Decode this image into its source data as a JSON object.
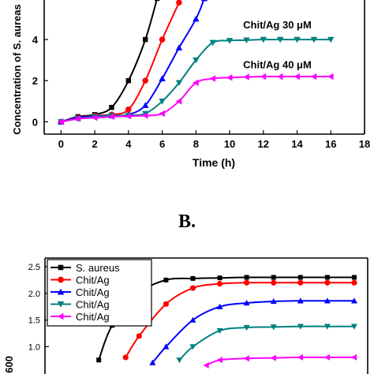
{
  "panel_b_label": "B.",
  "chart_data": [
    {
      "type": "line",
      "xlabel": "Time (h)",
      "ylabel": "Concentration of S. aureas",
      "xlim": [
        -1,
        18
      ],
      "ylim": [
        -0.6,
        6
      ],
      "xticks": [
        0,
        2,
        4,
        6,
        8,
        10,
        12,
        14,
        16,
        18
      ],
      "yticks": [
        0,
        2,
        4
      ],
      "series": [
        {
          "name": "",
          "color": "#000000",
          "marker": "square",
          "x": [
            0,
            1,
            2,
            3,
            4,
            5,
            5.7
          ],
          "y": [
            0,
            0.25,
            0.35,
            0.7,
            2.0,
            4.0,
            6.0
          ]
        },
        {
          "name": "",
          "color": "#ff0000",
          "marker": "circle",
          "x": [
            0,
            1,
            2,
            3,
            4,
            5,
            6,
            7
          ],
          "y": [
            0,
            0.2,
            0.3,
            0.35,
            0.6,
            2.0,
            4.0,
            5.8
          ]
        },
        {
          "name": "",
          "color": "#0000ff",
          "marker": "triangle-up",
          "x": [
            0,
            1,
            2,
            3,
            4,
            5,
            6,
            7,
            8,
            8.5
          ],
          "y": [
            0,
            0.2,
            0.28,
            0.3,
            0.35,
            0.8,
            2.1,
            3.6,
            5.0,
            6.0
          ]
        },
        {
          "name": "Chit/Ag 30 μM",
          "color": "#008080",
          "marker": "triangle-down",
          "x": [
            0,
            1,
            2,
            3,
            4,
            5,
            6,
            7,
            8,
            9,
            10,
            11,
            12,
            13,
            14,
            15,
            16
          ],
          "y": [
            0,
            0.15,
            0.25,
            0.3,
            0.32,
            0.4,
            1.0,
            1.9,
            3.0,
            3.85,
            3.95,
            3.97,
            4.0,
            4.0,
            4.0,
            4.0,
            4.0
          ]
        },
        {
          "name": "Chit/Ag 40 μM",
          "color": "#ff00ff",
          "marker": "triangle-left",
          "x": [
            0,
            1,
            2,
            3,
            4,
            5,
            6,
            7,
            8,
            9,
            10,
            11,
            12,
            13,
            14,
            15,
            16
          ],
          "y": [
            0,
            0.15,
            0.2,
            0.25,
            0.28,
            0.3,
            0.4,
            1.0,
            1.9,
            2.1,
            2.15,
            2.18,
            2.2,
            2.2,
            2.2,
            2.2,
            2.2
          ]
        }
      ],
      "annotations": [
        {
          "text": "Chit/Ag 30 μM",
          "x": 10.8,
          "y": 4.55
        },
        {
          "text": "Chit/Ag 40 μM",
          "x": 10.8,
          "y": 2.6
        }
      ]
    },
    {
      "type": "line",
      "ylabel_partial": "600",
      "ylim": [
        0.5,
        2.7
      ],
      "yticks": [
        1.0,
        1.5,
        2.0,
        2.5
      ],
      "yticklabels": [
        "1.0",
        "1.5",
        "2.0",
        "2.5"
      ],
      "legend": {
        "placement": "top-left",
        "entries": [
          {
            "label": "S. aureus",
            "color": "#000000",
            "marker": "square"
          },
          {
            "label": "Chit/Ag",
            "color": "#ff0000",
            "marker": "circle"
          },
          {
            "label": "Chit/Ag",
            "color": "#0000ff",
            "marker": "triangle-up"
          },
          {
            "label": "Chit/Ag",
            "color": "#008080",
            "marker": "triangle-down"
          },
          {
            "label": "Chit/Ag",
            "color": "#ff00ff",
            "marker": "triangle-left"
          }
        ]
      },
      "series": [
        {
          "color": "#000000",
          "marker": "square",
          "x": [
            6.5,
            7,
            8,
            9,
            10,
            11,
            12,
            13,
            14,
            15,
            16
          ],
          "y": [
            0.75,
            1.4,
            2.0,
            2.25,
            2.28,
            2.29,
            2.3,
            2.3,
            2.3,
            2.3,
            2.3
          ]
        },
        {
          "color": "#ff0000",
          "marker": "circle",
          "x": [
            7.5,
            8,
            9,
            10,
            11,
            12,
            13,
            14,
            15,
            16
          ],
          "y": [
            0.8,
            1.2,
            1.8,
            2.1,
            2.18,
            2.2,
            2.2,
            2.2,
            2.2,
            2.2
          ]
        },
        {
          "color": "#0000ff",
          "marker": "triangle-up",
          "x": [
            8.5,
            9,
            10,
            11,
            12,
            13,
            14,
            15,
            16
          ],
          "y": [
            0.7,
            1.0,
            1.5,
            1.75,
            1.82,
            1.85,
            1.86,
            1.86,
            1.86
          ]
        },
        {
          "color": "#008080",
          "marker": "triangle-down",
          "x": [
            9.5,
            10,
            11,
            12,
            13,
            14,
            15,
            16
          ],
          "y": [
            0.75,
            1.0,
            1.3,
            1.36,
            1.37,
            1.38,
            1.38,
            1.38
          ]
        },
        {
          "color": "#ff00ff",
          "marker": "triangle-left",
          "x": [
            10.5,
            11,
            12,
            13,
            14,
            15,
            16
          ],
          "y": [
            0.65,
            0.75,
            0.78,
            0.79,
            0.8,
            0.8,
            0.8
          ]
        }
      ],
      "x_range_shown": [
        4.5,
        16.5
      ]
    }
  ]
}
